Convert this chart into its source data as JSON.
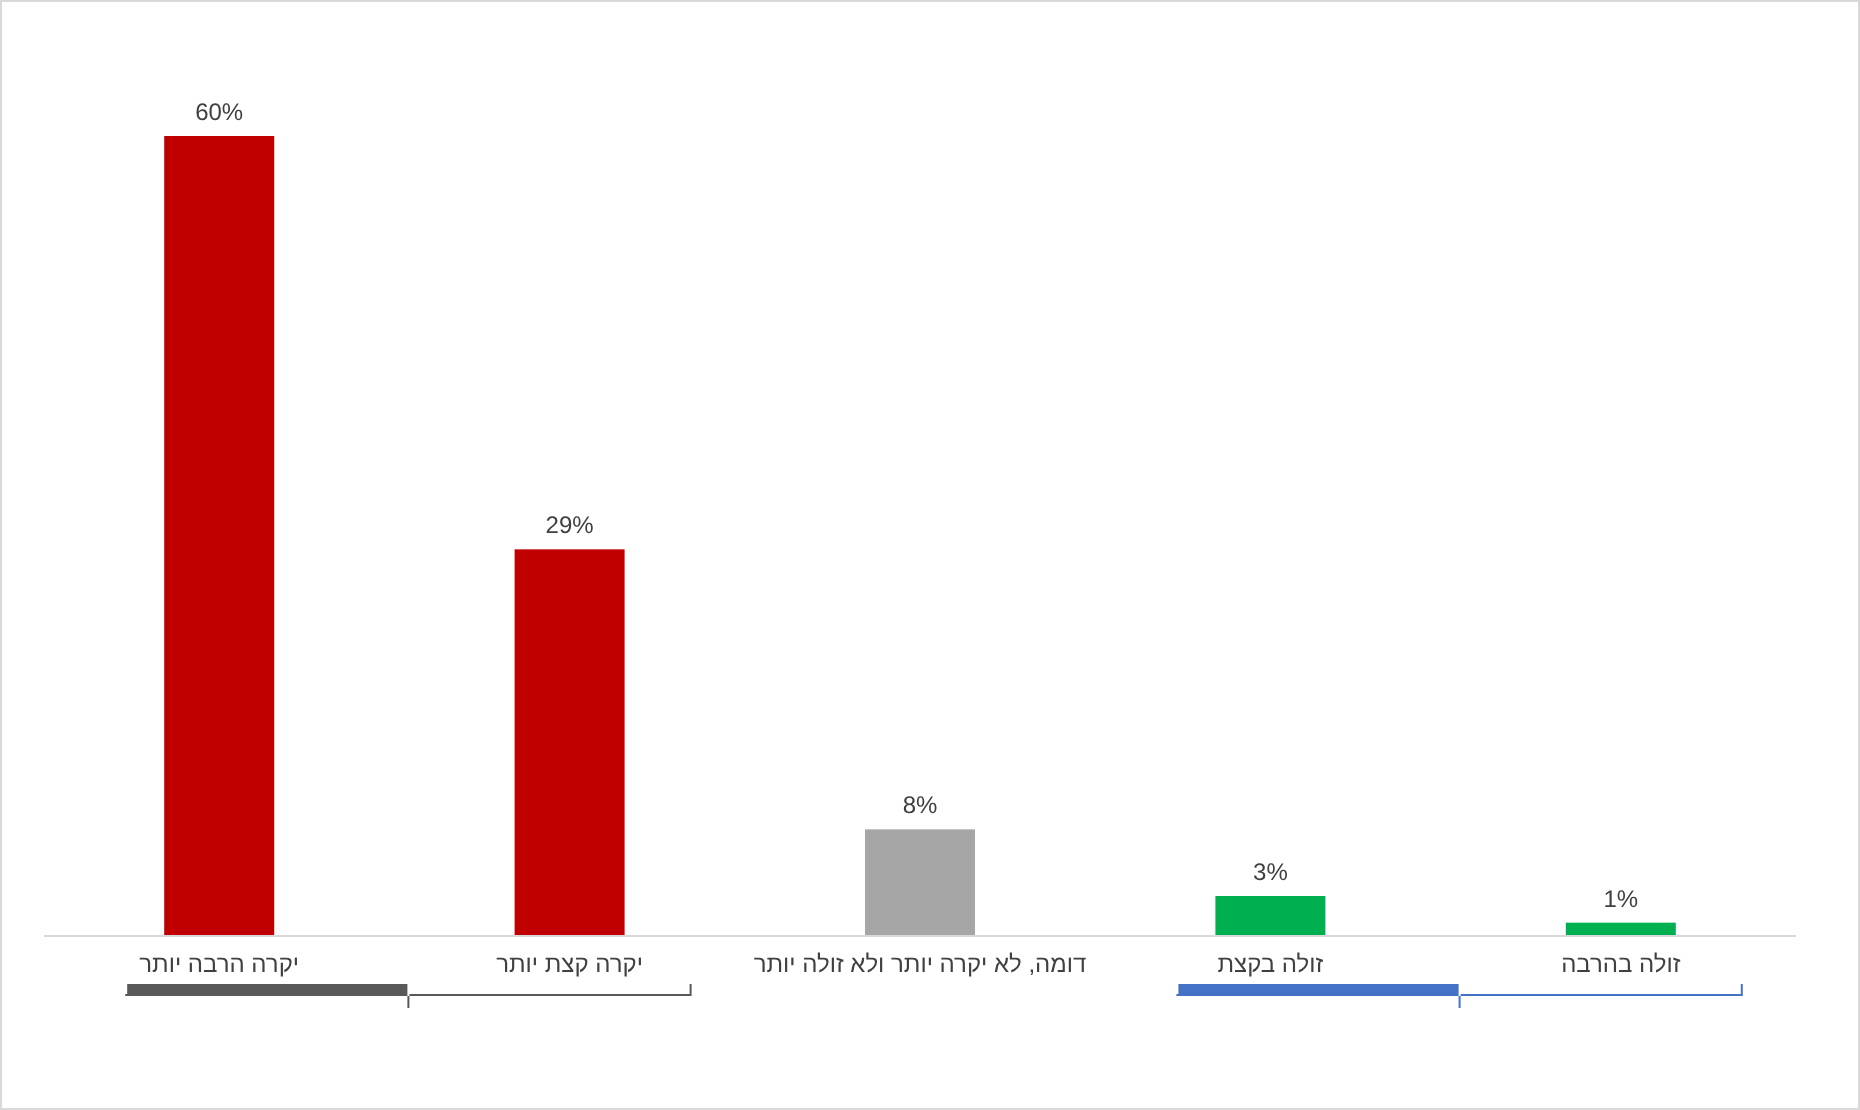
{
  "chart_data": {
    "type": "bar",
    "categories": [
      "יקרה הרבה יותר",
      "יקרה קצת יותר",
      "דומה, לא יקרה יותר ולא זולה יותר",
      "זולה בקצת",
      "זולה בהרבה"
    ],
    "values": [
      60,
      29,
      8,
      3,
      1
    ],
    "colors": [
      "#c00000",
      "#c00000",
      "#a6a6a6",
      "#00b050",
      "#00b050"
    ],
    "value_labels": [
      "60%",
      "29%",
      "8%",
      "3%",
      "1%"
    ],
    "grid": false
  }
}
